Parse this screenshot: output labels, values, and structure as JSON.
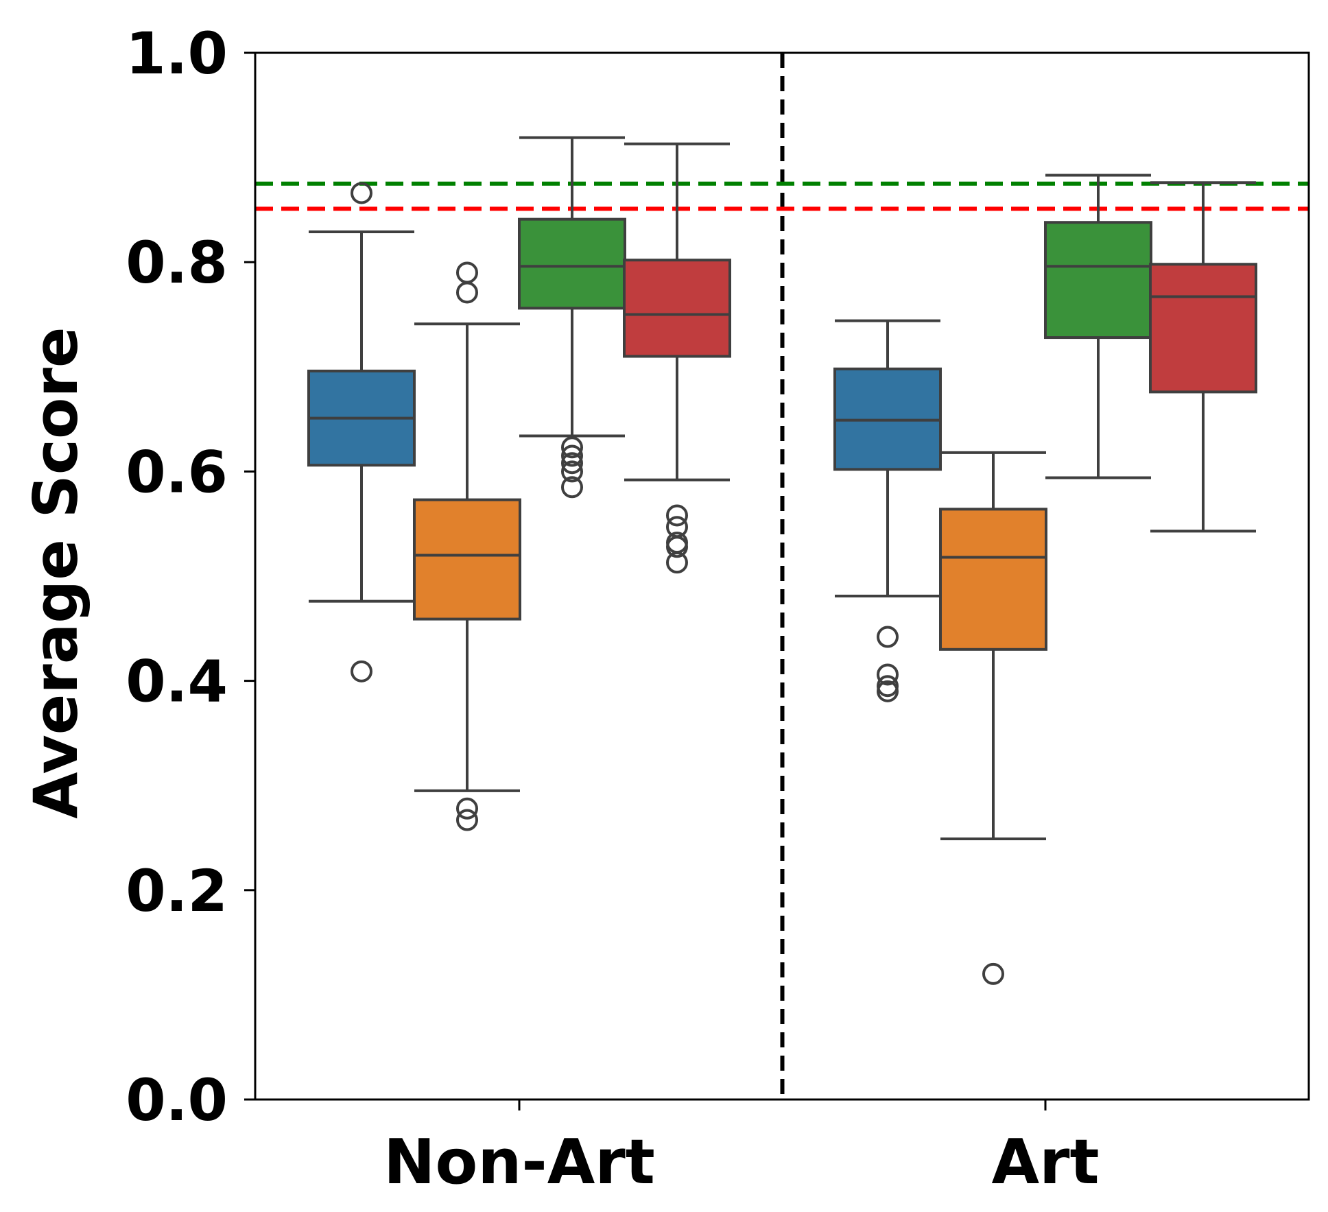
{
  "chart_data": {
    "type": "box",
    "title": "",
    "xlabel": "",
    "ylabel": "Average Score",
    "ylim": [
      0.0,
      1.0
    ],
    "yticks": [
      "0.0",
      "0.2",
      "0.4",
      "0.6",
      "0.8",
      "1.0"
    ],
    "categories": [
      "Non-Art",
      "Art"
    ],
    "grid": false,
    "legend": "none",
    "series_colors": [
      "#3274a1",
      "#e1812c",
      "#3a923a",
      "#c03d3e"
    ],
    "reference_lines": [
      {
        "y": 0.875,
        "color": "#008000",
        "style": "dashed"
      },
      {
        "y": 0.851,
        "color": "#ff0000",
        "style": "dashed"
      }
    ],
    "separator": {
      "between": [
        "Non-Art",
        "Art"
      ],
      "color": "#000000",
      "style": "dashed"
    },
    "boxes": [
      {
        "category": "Non-Art",
        "series": 0,
        "whisker_low": 0.476,
        "q1": 0.606,
        "median": 0.651,
        "q3": 0.696,
        "whisker_high": 0.829,
        "outliers": [
          0.866,
          0.409
        ]
      },
      {
        "category": "Non-Art",
        "series": 1,
        "whisker_low": 0.295,
        "q1": 0.459,
        "median": 0.52,
        "q3": 0.573,
        "whisker_high": 0.741,
        "outliers": [
          0.79,
          0.771,
          0.278,
          0.267
        ]
      },
      {
        "category": "Non-Art",
        "series": 2,
        "whisker_low": 0.634,
        "q1": 0.756,
        "median": 0.796,
        "q3": 0.841,
        "whisker_high": 0.919,
        "outliers": [
          0.623,
          0.615,
          0.608,
          0.6,
          0.585
        ]
      },
      {
        "category": "Non-Art",
        "series": 3,
        "whisker_low": 0.592,
        "q1": 0.71,
        "median": 0.75,
        "q3": 0.802,
        "whisker_high": 0.913,
        "outliers": [
          0.558,
          0.547,
          0.532,
          0.528,
          0.513
        ]
      },
      {
        "category": "Art",
        "series": 0,
        "whisker_low": 0.481,
        "q1": 0.602,
        "median": 0.649,
        "q3": 0.698,
        "whisker_high": 0.744,
        "outliers": [
          0.442,
          0.406,
          0.395,
          0.39
        ]
      },
      {
        "category": "Art",
        "series": 1,
        "whisker_low": 0.249,
        "q1": 0.43,
        "median": 0.518,
        "q3": 0.564,
        "whisker_high": 0.618,
        "outliers": [
          0.12
        ]
      },
      {
        "category": "Art",
        "series": 2,
        "whisker_low": 0.594,
        "q1": 0.728,
        "median": 0.796,
        "q3": 0.838,
        "whisker_high": 0.883,
        "outliers": []
      },
      {
        "category": "Art",
        "series": 3,
        "whisker_low": 0.543,
        "q1": 0.676,
        "median": 0.767,
        "q3": 0.798,
        "whisker_high": 0.876,
        "outliers": []
      }
    ]
  }
}
